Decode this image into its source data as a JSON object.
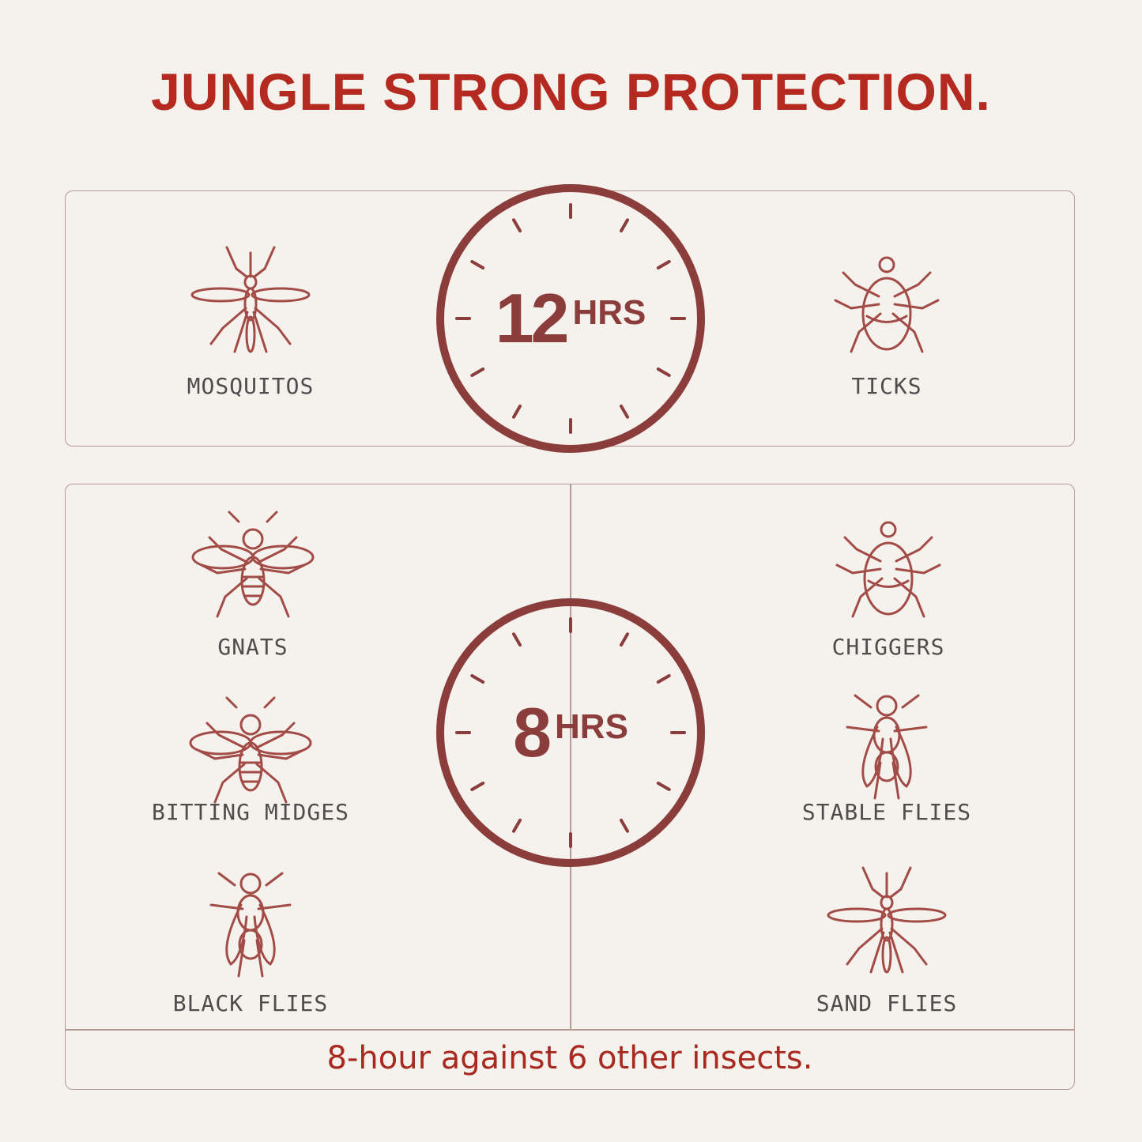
{
  "title": "JUNGLE STRONG PROTECTION.",
  "colors": {
    "title": "#b52a20",
    "icon": "#a24b47",
    "clock": "#8b3d3c",
    "background": "#f5f1ec",
    "label": "#4d4d4d"
  },
  "top_section": {
    "clock": {
      "value": "12",
      "unit": "HRS"
    },
    "insects": [
      {
        "label": "MOSQUITOS",
        "icon": "mosquito-icon"
      },
      {
        "label": "TICKS",
        "icon": "tick-icon"
      }
    ]
  },
  "bottom_section": {
    "clock": {
      "value": "8",
      "unit": "HRS"
    },
    "insects": [
      {
        "label": "GNATS",
        "icon": "gnat-icon"
      },
      {
        "label": "CHIGGERS",
        "icon": "chigger-icon"
      },
      {
        "label": "BITTING MIDGES",
        "icon": "midge-icon"
      },
      {
        "label": "STABLE FLIES",
        "icon": "stable-fly-icon"
      },
      {
        "label": "BLACK FLIES",
        "icon": "black-fly-icon"
      },
      {
        "label": "SAND FLIES",
        "icon": "sand-fly-icon"
      }
    ],
    "footer": "8-hour against 6 other insects."
  }
}
